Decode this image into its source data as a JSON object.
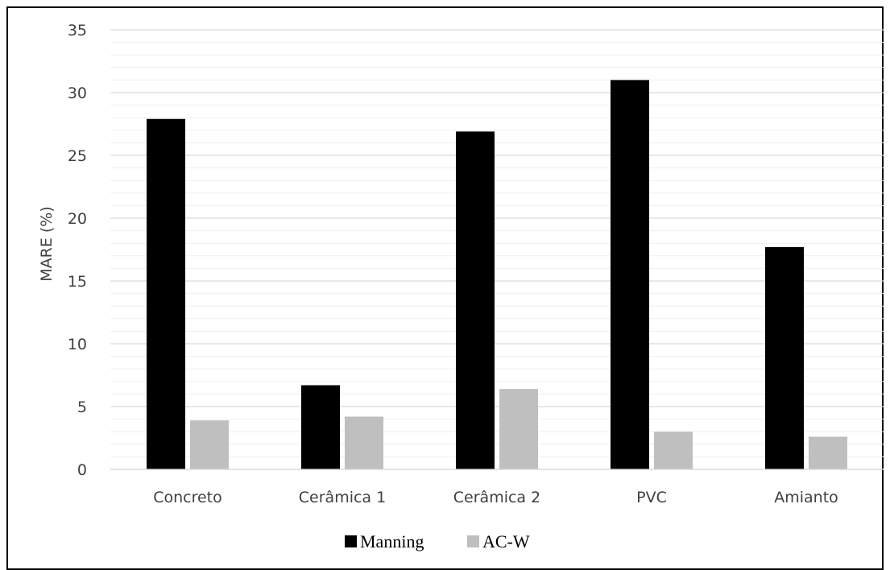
{
  "chart_data": {
    "type": "bar",
    "title": "",
    "xlabel": "",
    "ylabel": "MARE (%)",
    "categories": [
      "Concreto",
      "Cerâmica 1",
      "Cerâmica 2",
      "PVC",
      "Amianto"
    ],
    "series": [
      {
        "name": "Manning",
        "values": [
          27.9,
          6.7,
          26.9,
          31.0,
          17.7
        ],
        "color": "#000000"
      },
      {
        "name": "AC-W",
        "values": [
          3.9,
          4.2,
          6.4,
          3.0,
          2.6
        ],
        "color": "#bfbfbf"
      }
    ],
    "ylim": [
      0,
      35
    ],
    "yticks": [
      0,
      5,
      10,
      15,
      20,
      25,
      30,
      35
    ],
    "grid": true,
    "minor_grid": true,
    "legend_position": "bottom"
  }
}
